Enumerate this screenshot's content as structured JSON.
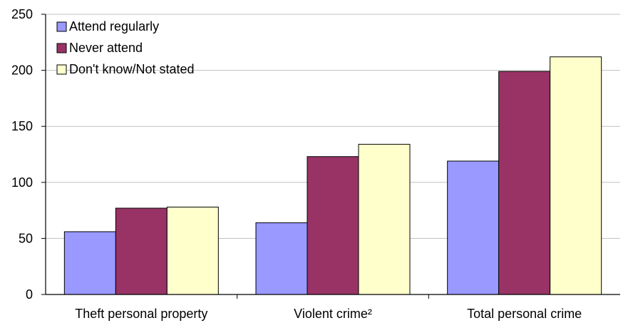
{
  "chart_data": {
    "type": "bar",
    "categories": [
      "Theft personal property",
      "Violent crime²",
      "Total personal crime"
    ],
    "series": [
      {
        "name": "Attend regularly",
        "values": [
          56,
          64,
          119
        ],
        "color": "#9999ff"
      },
      {
        "name": "Never attend",
        "values": [
          77,
          123,
          199
        ],
        "color": "#993366"
      },
      {
        "name": "Don't know/Not stated",
        "values": [
          78,
          134,
          212
        ],
        "color": "#ffffcc"
      }
    ],
    "ylim": [
      0,
      250
    ],
    "yticks": [
      0,
      50,
      100,
      150,
      200,
      250
    ],
    "grid": true,
    "legend": "top-left"
  }
}
